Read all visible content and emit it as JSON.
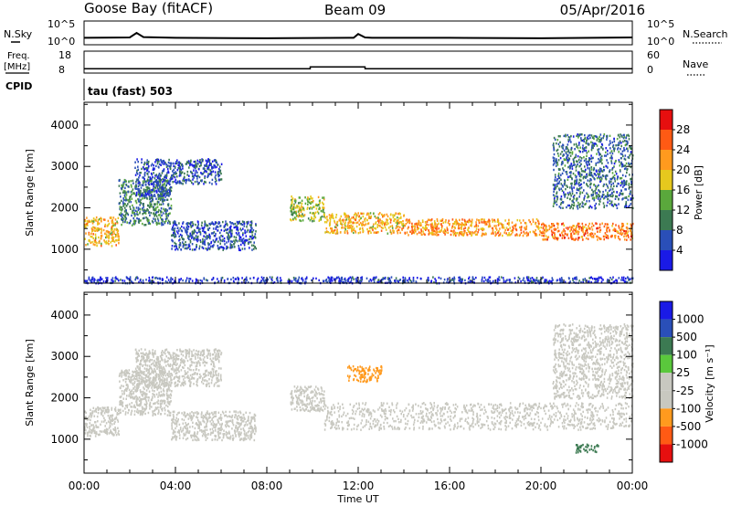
{
  "header": {
    "radar": "Goose Bay (fitACF)",
    "beam": "Beam 09",
    "date": "05/Apr/2016"
  },
  "nsky_panel": {
    "left_label": "N.Sky",
    "left_ticks": [
      "10^5",
      "10^0"
    ],
    "right_label": "N.Search",
    "right_ticks": [
      "10^5",
      "10^0"
    ]
  },
  "freq_panel": {
    "left_label_top": "Freq.",
    "left_label_unit": "[MHz]",
    "left_ticks": [
      "18",
      "8"
    ],
    "right_label": "Nave",
    "right_ticks": [
      "60",
      "0"
    ]
  },
  "cpid_panel": {
    "label": "CPID",
    "mode": "tau (fast) 503"
  },
  "x_axis": {
    "label": "Time UT",
    "ticks": [
      "00:00",
      "04:00",
      "08:00",
      "12:00",
      "16:00",
      "20:00",
      "00:00"
    ]
  },
  "y_axis": {
    "label": "Slant Range [km]",
    "ticks": [
      "1000",
      "2000",
      "3000",
      "4000"
    ]
  },
  "power_scale": {
    "label": "Power [dB]",
    "ticks": [
      "4",
      "8",
      "12",
      "16",
      "20",
      "24",
      "28"
    ],
    "colors": [
      "#1a1ae6",
      "#2a4fb8",
      "#3c7a52",
      "#5aa83c",
      "#e6c81e",
      "#ff9a1e",
      "#ff5a14",
      "#e60f0f"
    ]
  },
  "velocity_scale": {
    "label": "Velocity [m s⁻¹]",
    "ticks": [
      "1000",
      "500",
      "100",
      "25",
      "-25",
      "-100",
      "-500",
      "-1000"
    ],
    "colors": [
      "#1a1ae6",
      "#2a4fb8",
      "#3c7a52",
      "#5ac83c",
      "#c8c8c0",
      "#c8c8c0",
      "#ff9a1e",
      "#ff5a14",
      "#e60f0f"
    ]
  },
  "chart_data": [
    {
      "type": "line",
      "x_range_hours": [
        0,
        24
      ],
      "series": [
        {
          "x": [
            0,
            2,
            2.3,
            2.6,
            4,
            8,
            11.8,
            12,
            12.3,
            12.6,
            16,
            20,
            24
          ],
          "y": [
            1.8,
            1.9,
            3.1,
            2.0,
            1.8,
            1.7,
            1.8,
            2.8,
            1.9,
            1.8,
            1.8,
            1.7,
            1.9
          ]
        }
      ]
    },
    {
      "type": "line",
      "x_range_hours": [
        0,
        24
      ],
      "series": [
        {
          "x": [
            0,
            9.9,
            9.9,
            12.3,
            12.3,
            24
          ],
          "y": [
            10.5,
            10.5,
            11.5,
            11.5,
            10.5,
            10.5
          ]
        }
      ]
    },
    {
      "type": "heatmap",
      "quantity": "Power",
      "unit": "dB",
      "x_range_hours": [
        0,
        24
      ],
      "y_range_km": [
        180,
        4550
      ],
      "echo_regions": [
        {
          "x": [
            0,
            1.5
          ],
          "y": [
            1100,
            1800
          ],
          "level": 20
        },
        {
          "x": [
            1.5,
            3.8
          ],
          "y": [
            1600,
            2700
          ],
          "level": 10
        },
        {
          "x": [
            2.2,
            3.8
          ],
          "y": [
            2300,
            3200
          ],
          "level": 6
        },
        {
          "x": [
            3.8,
            6.0
          ],
          "y": [
            2600,
            3200
          ],
          "level": 6
        },
        {
          "x": [
            3.8,
            7.5
          ],
          "y": [
            1000,
            1700
          ],
          "level": 6
        },
        {
          "x": [
            9.0,
            10.5
          ],
          "y": [
            1700,
            2300
          ],
          "level": 16
        },
        {
          "x": [
            10.5,
            14.0
          ],
          "y": [
            1400,
            1900
          ],
          "level": 20
        },
        {
          "x": [
            14.0,
            20.0
          ],
          "y": [
            1350,
            1750
          ],
          "level": 22
        },
        {
          "x": [
            20.0,
            24.0
          ],
          "y": [
            1250,
            1650
          ],
          "level": 24
        },
        {
          "x": [
            20.5,
            24.0
          ],
          "y": [
            2000,
            3800
          ],
          "level": 8
        },
        {
          "x": [
            0,
            24
          ],
          "y": [
            200,
            350
          ],
          "level": 4
        }
      ]
    },
    {
      "type": "heatmap",
      "quantity": "Velocity",
      "unit": "m/s",
      "x_range_hours": [
        0,
        24
      ],
      "y_range_km": [
        180,
        4550
      ],
      "echo_regions": [
        {
          "x": [
            0,
            1.5
          ],
          "y": [
            1100,
            1800
          ],
          "level": 0
        },
        {
          "x": [
            1.5,
            3.8
          ],
          "y": [
            1600,
            2700
          ],
          "level": 0
        },
        {
          "x": [
            2.2,
            6.0
          ],
          "y": [
            2300,
            3200
          ],
          "level": 0
        },
        {
          "x": [
            3.8,
            7.5
          ],
          "y": [
            1000,
            1700
          ],
          "level": 0
        },
        {
          "x": [
            9.0,
            10.5
          ],
          "y": [
            1700,
            2300
          ],
          "level": 0
        },
        {
          "x": [
            10.5,
            24.0
          ],
          "y": [
            1250,
            1900
          ],
          "level": 0
        },
        {
          "x": [
            11.5,
            13.0
          ],
          "y": [
            2400,
            2800
          ],
          "level": -300
        },
        {
          "x": [
            21.5,
            22.5
          ],
          "y": [
            700,
            900
          ],
          "level": 80
        },
        {
          "x": [
            20.5,
            24.0
          ],
          "y": [
            2000,
            3800
          ],
          "level": 0
        }
      ]
    }
  ]
}
